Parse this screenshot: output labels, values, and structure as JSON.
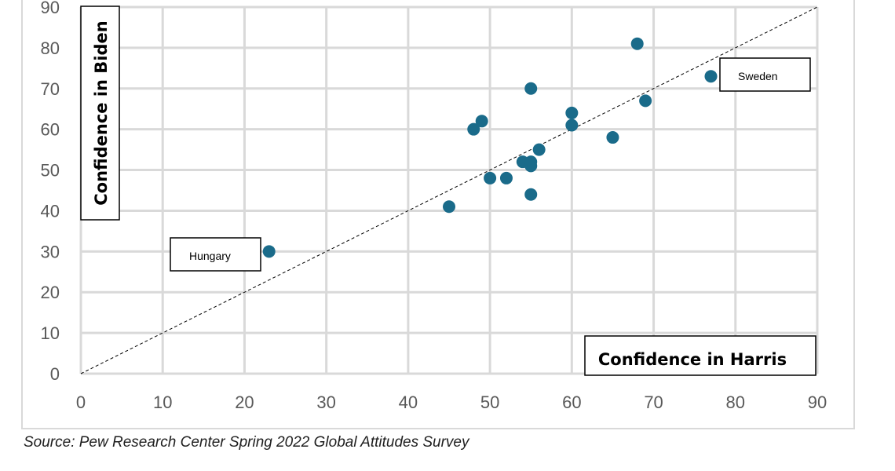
{
  "chart_data": {
    "type": "scatter",
    "xlabel": "Confidence in Harris",
    "ylabel": "Confidence in Biden",
    "xlim": [
      0,
      90
    ],
    "ylim": [
      0,
      90
    ],
    "xticks": [
      0,
      10,
      20,
      30,
      40,
      50,
      60,
      70,
      80,
      90
    ],
    "yticks": [
      0,
      10,
      20,
      30,
      40,
      50,
      60,
      70,
      80,
      90
    ],
    "grid": true,
    "reference_line": "y = x (dashed)",
    "marker_color": "#1a6b8a",
    "points": [
      {
        "x": 23,
        "y": 30,
        "label": "Hungary"
      },
      {
        "x": 45,
        "y": 41
      },
      {
        "x": 48,
        "y": 60
      },
      {
        "x": 49,
        "y": 62
      },
      {
        "x": 50,
        "y": 48
      },
      {
        "x": 52,
        "y": 48
      },
      {
        "x": 54,
        "y": 52
      },
      {
        "x": 55,
        "y": 70
      },
      {
        "x": 55,
        "y": 52
      },
      {
        "x": 55,
        "y": 51
      },
      {
        "x": 55,
        "y": 44
      },
      {
        "x": 56,
        "y": 55
      },
      {
        "x": 60,
        "y": 64
      },
      {
        "x": 60,
        "y": 61
      },
      {
        "x": 65,
        "y": 58
      },
      {
        "x": 68,
        "y": 81
      },
      {
        "x": 69,
        "y": 67
      },
      {
        "x": 77,
        "y": 73,
        "label": "Sweden"
      }
    ]
  },
  "source": "Source: Pew Research Center Spring 2022 Global Attitudes Survey"
}
